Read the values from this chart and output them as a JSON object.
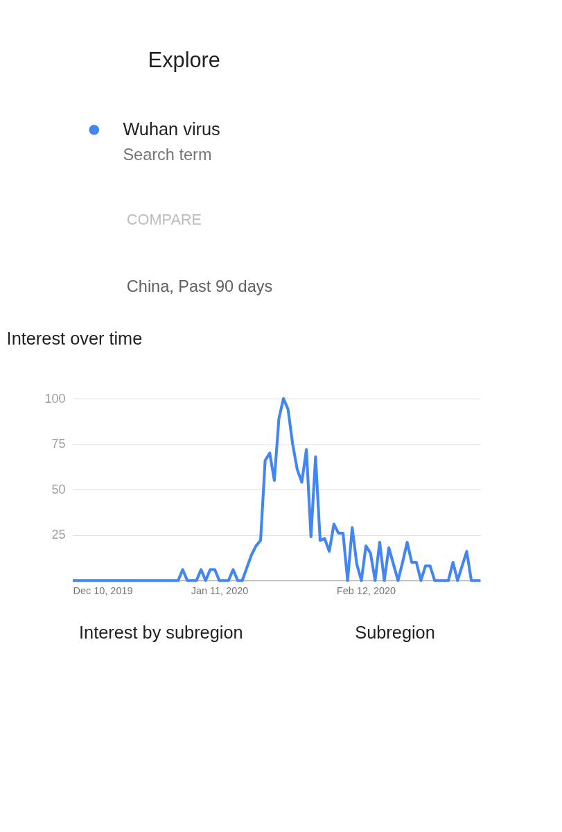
{
  "chart_data": {
    "type": "line",
    "title": "Interest over time",
    "annotations": [
      "Explore",
      "Search term",
      "COMPARE",
      "China, Past 90 days",
      "Interest by subregion",
      "Subregion"
    ],
    "legend": "top",
    "x": [
      "2019-12-10",
      "2019-12-11",
      "2019-12-12",
      "2019-12-13",
      "2019-12-14",
      "2019-12-15",
      "2019-12-16",
      "2019-12-17",
      "2019-12-18",
      "2019-12-19",
      "2019-12-20",
      "2019-12-21",
      "2019-12-22",
      "2019-12-23",
      "2019-12-24",
      "2019-12-25",
      "2019-12-26",
      "2019-12-27",
      "2019-12-28",
      "2019-12-29",
      "2019-12-30",
      "2019-12-31",
      "2020-01-01",
      "2020-01-02",
      "2020-01-03",
      "2020-01-04",
      "2020-01-05",
      "2020-01-06",
      "2020-01-07",
      "2020-01-08",
      "2020-01-09",
      "2020-01-10",
      "2020-01-11",
      "2020-01-12",
      "2020-01-13",
      "2020-01-14",
      "2020-01-15",
      "2020-01-16",
      "2020-01-17",
      "2020-01-18",
      "2020-01-19",
      "2020-01-20",
      "2020-01-21",
      "2020-01-22",
      "2020-01-23",
      "2020-01-24",
      "2020-01-25",
      "2020-01-26",
      "2020-01-27",
      "2020-01-28",
      "2020-01-29",
      "2020-01-30",
      "2020-01-31",
      "2020-02-01",
      "2020-02-02",
      "2020-02-03",
      "2020-02-04",
      "2020-02-05",
      "2020-02-06",
      "2020-02-07",
      "2020-02-08",
      "2020-02-09",
      "2020-02-10",
      "2020-02-11",
      "2020-02-12",
      "2020-02-13",
      "2020-02-14",
      "2020-02-15",
      "2020-02-16",
      "2020-02-17",
      "2020-02-18",
      "2020-02-19",
      "2020-02-20",
      "2020-02-21",
      "2020-02-22",
      "2020-02-23",
      "2020-02-24",
      "2020-02-25",
      "2020-02-26",
      "2020-02-27",
      "2020-02-28",
      "2020-02-29",
      "2020-03-01",
      "2020-03-02",
      "2020-03-03",
      "2020-03-04",
      "2020-03-05",
      "2020-03-06",
      "2020-03-07",
      "2020-03-08"
    ],
    "series": [
      {
        "name": "Wuhan virus",
        "color": "#4285f4",
        "values": [
          0,
          0,
          0,
          0,
          0,
          0,
          0,
          0,
          0,
          0,
          0,
          0,
          0,
          0,
          0,
          0,
          0,
          0,
          0,
          0,
          0,
          0,
          0,
          0,
          6,
          0,
          0,
          0,
          6,
          0,
          6,
          6,
          0,
          0,
          0,
          6,
          0,
          0,
          7,
          14,
          19,
          22,
          66,
          70,
          55,
          89,
          100,
          94,
          75,
          61,
          54,
          72,
          24,
          68,
          22,
          23,
          16,
          31,
          26,
          26,
          0,
          29,
          9,
          0,
          19,
          15,
          0,
          21,
          0,
          18,
          9,
          0,
          10,
          21,
          10,
          10,
          0,
          8,
          8,
          0,
          0,
          0,
          0,
          10,
          0,
          8,
          16,
          0,
          0,
          0
        ]
      }
    ],
    "xlim": [
      "2019-12-10",
      "2020-03-08"
    ],
    "xticks": [
      {
        "value": "2019-12-10",
        "label": "Dec 10, 2019"
      },
      {
        "value": "2020-01-11",
        "label": "Jan 11, 2020"
      },
      {
        "value": "2020-02-12",
        "label": "Feb 12, 2020"
      }
    ],
    "ylim": [
      0,
      100
    ],
    "yticks": [
      {
        "value": 0,
        "label": null
      },
      25,
      50,
      75,
      100
    ],
    "grid": "y",
    "line_style": "solid",
    "marker": "none"
  }
}
